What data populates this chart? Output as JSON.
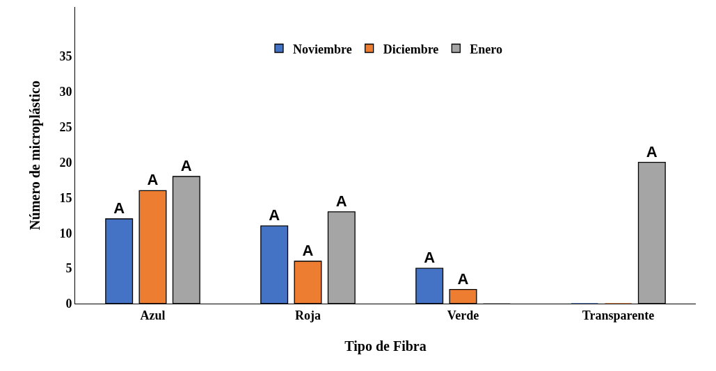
{
  "chart_data": {
    "type": "bar",
    "xlabel": "Tipo de Fibra",
    "ylabel": "Número de microplástico",
    "categories": [
      "Azul",
      "Roja",
      "Verde",
      "Transparente"
    ],
    "series": [
      {
        "name": "Noviembre",
        "color": "#4472c4",
        "values": [
          12,
          11,
          5,
          0
        ],
        "value_labels": [
          "A",
          "A",
          "A",
          null
        ]
      },
      {
        "name": "Diciembre",
        "color": "#ed7d31",
        "values": [
          16,
          6,
          2,
          0
        ],
        "value_labels": [
          "A",
          "A",
          "A",
          null
        ]
      },
      {
        "name": "Enero",
        "color": "#a5a5a5",
        "values": [
          18,
          13,
          0,
          20
        ],
        "value_labels": [
          "A",
          "A",
          null,
          "A"
        ]
      }
    ],
    "ylim": [
      0,
      42
    ],
    "yticks": [
      0,
      5,
      10,
      15,
      20,
      25,
      30,
      35
    ],
    "grid": false,
    "legend": "top"
  }
}
